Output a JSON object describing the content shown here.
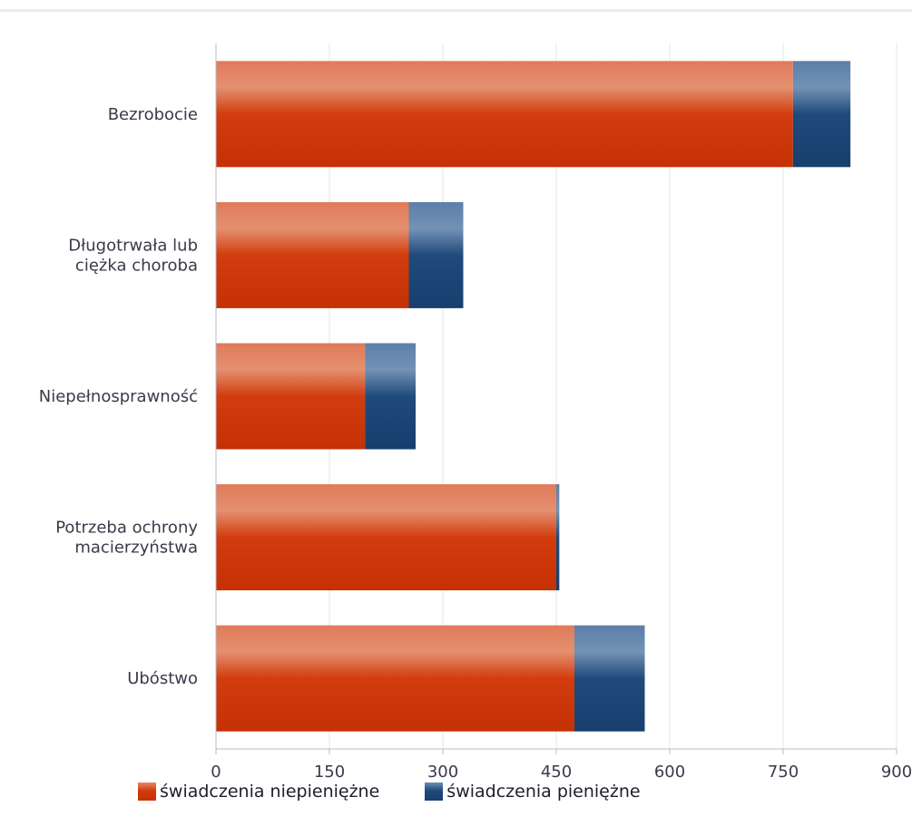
{
  "chart_data": {
    "type": "bar",
    "orientation": "horizontal",
    "stacked": true,
    "categories": [
      [
        "Bezrobocie"
      ],
      [
        "Długotrwała lub",
        "ciężka choroba"
      ],
      [
        "Niepełnosprawność"
      ],
      [
        "Potrzeba ochrony",
        "macierzyństwa"
      ],
      [
        "Ubóstwo"
      ]
    ],
    "series": [
      {
        "name": "świadczenia niepieniężne",
        "color": "#cc3a08",
        "values": [
          763,
          255,
          197,
          450,
          474
        ]
      },
      {
        "name": "świadczenia pieniężne",
        "color": "#1d4778",
        "values": [
          76,
          72,
          67,
          4,
          93
        ]
      }
    ],
    "xlim": [
      0,
      900
    ],
    "xticks": [
      "0",
      "150",
      "300",
      "450",
      "600",
      "750",
      "900"
    ],
    "grid": true,
    "legend_position": "bottom-left"
  }
}
